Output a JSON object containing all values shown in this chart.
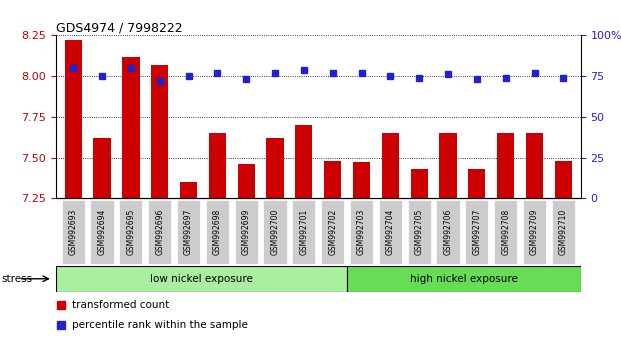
{
  "title": "GDS4974 / 7998222",
  "samples": [
    "GSM992693",
    "GSM992694",
    "GSM992695",
    "GSM992696",
    "GSM992697",
    "GSM992698",
    "GSM992699",
    "GSM992700",
    "GSM992701",
    "GSM992702",
    "GSM992703",
    "GSM992704",
    "GSM992705",
    "GSM992706",
    "GSM992707",
    "GSM992708",
    "GSM992709",
    "GSM992710"
  ],
  "red_values": [
    8.22,
    7.62,
    8.12,
    8.07,
    7.35,
    7.65,
    7.46,
    7.62,
    7.7,
    7.48,
    7.47,
    7.65,
    7.43,
    7.65,
    7.43,
    7.65,
    7.65,
    7.48
  ],
  "blue_values": [
    80,
    75,
    80,
    72,
    75,
    77,
    73,
    77,
    79,
    77,
    77,
    75,
    74,
    76,
    73,
    74,
    77,
    74
  ],
  "ylim_left": [
    7.25,
    8.25
  ],
  "ylim_right": [
    0,
    100
  ],
  "yticks_left": [
    7.25,
    7.5,
    7.75,
    8.0,
    8.25
  ],
  "yticks_right": [
    0,
    25,
    50,
    75,
    100
  ],
  "low_nickel_count": 10,
  "high_nickel_count": 8,
  "low_nickel_label": "low nickel exposure",
  "high_nickel_label": "high nickel exposure",
  "stress_label": "stress",
  "legend_red": "transformed count",
  "legend_blue": "percentile rank within the sample",
  "bar_color": "#cc0000",
  "dot_color": "#2222cc",
  "low_nickel_bg": "#aaeea0",
  "high_nickel_bg": "#66dd55",
  "tick_label_bg": "#cccccc"
}
